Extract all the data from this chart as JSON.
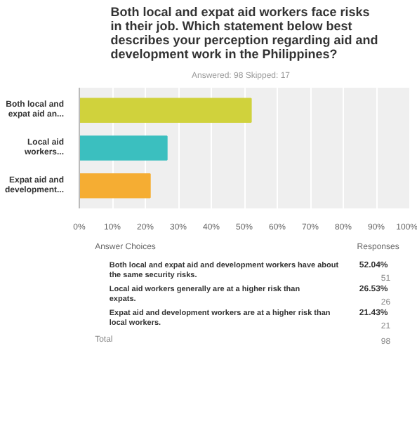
{
  "chart_data": {
    "type": "bar",
    "orientation": "horizontal",
    "title": "Both local and expat aid workers face risks in their job. Which statement below best describes your perception regarding aid and development work in the Philippines?",
    "subtitle": "Answered: 98    Skipped: 17",
    "categories": [
      "Both local and expat aid an...",
      "Local aid workers...",
      "Expat aid and development..."
    ],
    "values": [
      52.04,
      26.53,
      21.43
    ],
    "colors": [
      "#d0d23c",
      "#3bbfbf",
      "#f5ad33"
    ],
    "xlim": [
      0,
      100
    ],
    "xticks": [
      {
        "value": 0,
        "label": "0%"
      },
      {
        "value": 10,
        "label": "10%"
      },
      {
        "value": 20,
        "label": "20%"
      },
      {
        "value": 30,
        "label": "30%"
      },
      {
        "value": 40,
        "label": "40%"
      },
      {
        "value": 50,
        "label": "50%"
      },
      {
        "value": 60,
        "label": "60%"
      },
      {
        "value": 70,
        "label": "70%"
      },
      {
        "value": 80,
        "label": "80%"
      },
      {
        "value": 90,
        "label": "90%"
      },
      {
        "value": 100,
        "label": "100%"
      }
    ],
    "grid": "x",
    "annotations": [
      "Answer Choices",
      "Responses",
      "52.04%",
      "26.53%",
      "21.43%",
      "Both local and expat aid and development workers have about the same security risks.",
      "Local aid workers generally are at a higher risk than expats.",
      "Expat aid and development workers are at a higher risk than local workers.",
      "51",
      "26",
      "21",
      "Total",
      "98"
    ]
  }
}
